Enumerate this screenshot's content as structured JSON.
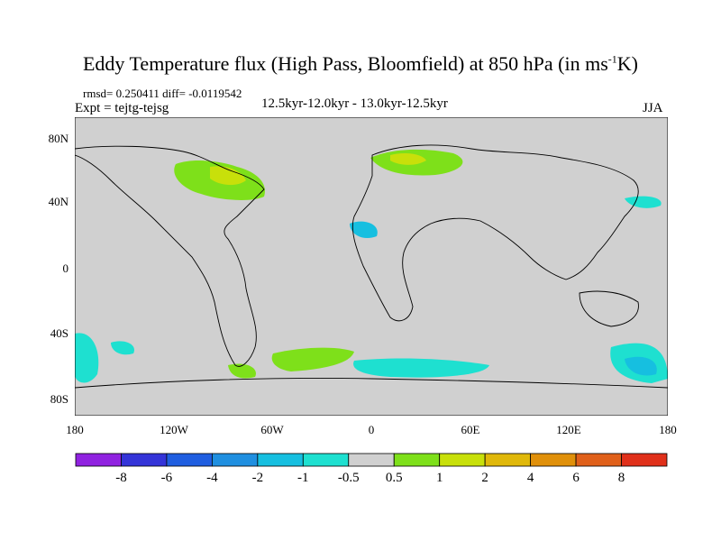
{
  "title": {
    "main": "Eddy Temperature flux (High Pass, Bloomfield) at 850 hPa (in ms",
    "sup": "-1",
    "end": "K)"
  },
  "stats": {
    "rmsd_line": "rmsd= 0.250411 diff= -0.0119542",
    "period": "12.5kyr-12.0kyr - 13.0kyr-12.5kyr",
    "expt": "Expt = tejtg-tejsg",
    "season": "JJA"
  },
  "axes": {
    "y_ticks": [
      "80N",
      "40N",
      "0",
      "40S",
      "80S"
    ],
    "x_ticks": [
      "180",
      "120W",
      "60W",
      "0",
      "60E",
      "120E",
      "180"
    ]
  },
  "colorbar": {
    "labels": [
      "-8",
      "-6",
      "-4",
      "-2",
      "-1",
      "-0.5",
      "0.5",
      "1",
      "2",
      "4",
      "6",
      "8"
    ],
    "colors": [
      "#9022e0",
      "#3434d8",
      "#1f5ee0",
      "#1f8fe0",
      "#16bfe0",
      "#1ee0d0",
      "#d0d0d0",
      "#7ee01a",
      "#c8e00a",
      "#e0b80a",
      "#e0900a",
      "#e0601a",
      "#e0301a"
    ]
  },
  "colors": {
    "land_ocean": "#d0d0d0",
    "pos1": "#7ee01a",
    "pos2": "#c8e00a",
    "neg1": "#1ee0d0",
    "neg2": "#16bfe0"
  }
}
